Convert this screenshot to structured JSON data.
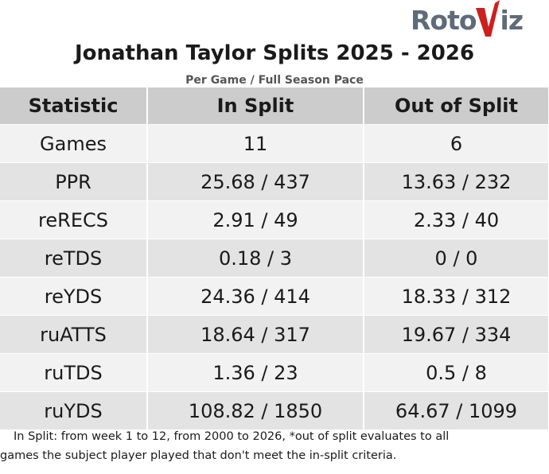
{
  "logo": {
    "prefix": "Roto",
    "accent": "V",
    "suffix": "iz",
    "accent_color": "#cc1f1f"
  },
  "title": "Jonathan Taylor Splits 2025 - 2026",
  "subtitle": "Per Game / Full Season Pace",
  "table": {
    "headers": [
      "Statistic",
      "In Split",
      "Out of Split"
    ],
    "rows": [
      [
        "Games",
        "11",
        "6"
      ],
      [
        "PPR",
        "25.68 / 437",
        "13.63 / 232"
      ],
      [
        "reRECS",
        "2.91 / 49",
        "2.33 / 40"
      ],
      [
        "reTDS",
        "0.18 / 3",
        "0 / 0"
      ],
      [
        "reYDS",
        "24.36 / 414",
        "18.33 / 312"
      ],
      [
        "ruATTS",
        "18.64 / 317",
        "19.67 / 334"
      ],
      [
        "ruTDS",
        "1.36 / 23",
        "0.5 / 8"
      ],
      [
        "ruYDS",
        "108.82 / 1850",
        "64.67 / 1099"
      ]
    ]
  },
  "footnote": {
    "line1": "In Split: from week 1 to 12, from 2000 to 2026,  *out of split evaluates to all",
    "line2": "games the subject player played that don't meet the in-split criteria."
  },
  "colors": {
    "header_bg": "#cccccc",
    "row_light": "#f2f2f2",
    "row_dark": "#e3e3e3",
    "logo_gray": "#5f6b78"
  }
}
